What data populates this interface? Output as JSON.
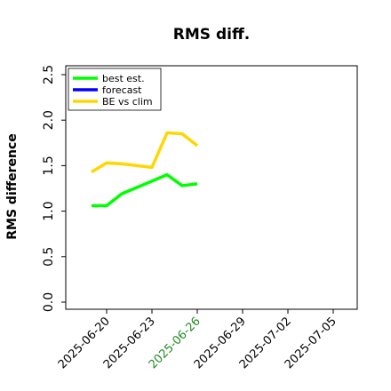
{
  "chart_data": {
    "type": "line",
    "title": "RMS diff.",
    "xlabel": "",
    "ylabel": "RMS difference",
    "ylim": [
      0,
      2.6
    ],
    "yticks": [
      "0.0",
      "0.5",
      "1.0",
      "1.5",
      "2.0",
      "2.5"
    ],
    "ytick_values": [
      0,
      0.5,
      1.0,
      1.5,
      2.0,
      2.5
    ],
    "xticks": [
      "2025-06-20",
      "2025-06-23",
      "2025-06-26",
      "2025-06-29",
      "2025-07-02",
      "2025-07-05"
    ],
    "highlighted_xtick": "2025-06-26",
    "highlight_color": "#228b22",
    "grid": false,
    "legend_position": "top-left",
    "series": [
      {
        "name": "best est.",
        "color": "#00ff00",
        "x": [
          "2025-06-19",
          "2025-06-20",
          "2025-06-21",
          "2025-06-22",
          "2025-06-23",
          "2025-06-24",
          "2025-06-25",
          "2025-06-26"
        ],
        "values": [
          1.06,
          1.06,
          1.19,
          1.26,
          1.33,
          1.4,
          1.28,
          1.3
        ]
      },
      {
        "name": "forecast",
        "color": "#0000ff",
        "x": [],
        "values": []
      },
      {
        "name": "BE vs clim",
        "color": "#ffd700",
        "x": [
          "2025-06-19",
          "2025-06-20",
          "2025-06-21",
          "2025-06-22",
          "2025-06-23",
          "2025-06-24",
          "2025-06-25",
          "2025-06-26"
        ],
        "values": [
          1.43,
          1.53,
          1.52,
          1.5,
          1.48,
          1.86,
          1.85,
          1.72
        ]
      }
    ],
    "xlim": [
      "2025-06-18",
      "2025-07-06"
    ]
  }
}
